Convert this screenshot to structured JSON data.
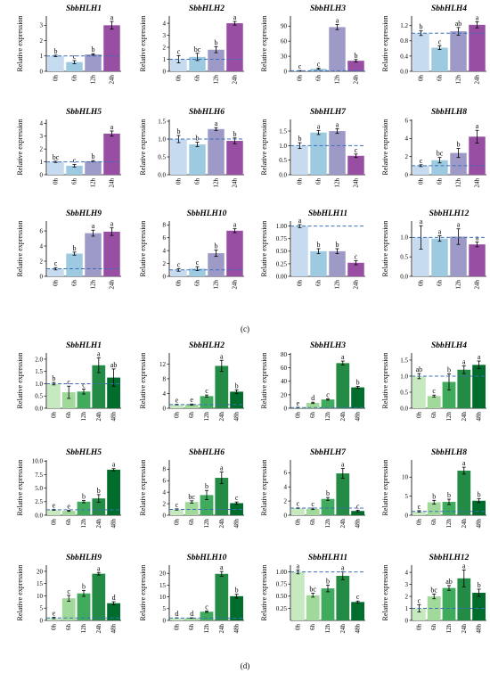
{
  "chart_data": [
    {
      "type": "bar",
      "panel": "c",
      "title": "SbbHLH1",
      "ylabel": "Relative expression",
      "categories": [
        "0h",
        "6h",
        "12h",
        "24h"
      ],
      "values": [
        1.0,
        0.6,
        1.1,
        3.0
      ],
      "errors": [
        0.05,
        0.1,
        0.05,
        0.25
      ],
      "letters": [
        "b",
        "c",
        "b",
        "a"
      ],
      "ylim": [
        0,
        3.6
      ],
      "yticks": [
        "0",
        "1",
        "2",
        "3"
      ],
      "reference_line": 1,
      "colors": [
        "#c6dbef",
        "#9ecae1",
        "#9e9ac8",
        "#984ea3"
      ]
    },
    {
      "type": "bar",
      "panel": "c",
      "title": "SbbHLH2",
      "ylabel": "Relative expression",
      "categories": [
        "0h",
        "6h",
        "12h",
        "24h"
      ],
      "values": [
        1.0,
        1.2,
        1.8,
        4.0
      ],
      "errors": [
        0.3,
        0.3,
        0.25,
        0.15
      ],
      "letters": [
        "c",
        "bc",
        "b",
        "a"
      ],
      "ylim": [
        0,
        4.6
      ],
      "yticks": [
        "0",
        "1",
        "2",
        "3",
        "4"
      ],
      "reference_line": 1,
      "colors": [
        "#c6dbef",
        "#9ecae1",
        "#9e9ac8",
        "#984ea3"
      ]
    },
    {
      "type": "bar",
      "panel": "c",
      "title": "SbbHLH3",
      "ylabel": "Relative expression",
      "categories": [
        "0h",
        "6h",
        "12h",
        "24h"
      ],
      "values": [
        1.0,
        5.0,
        88.0,
        21.0
      ],
      "errors": [
        0.5,
        1.5,
        5.0,
        2.5
      ],
      "letters": [
        "c",
        "c",
        "a",
        "b"
      ],
      "ylim": [
        0,
        110
      ],
      "yticks": [
        "0",
        "30",
        "60",
        "90"
      ],
      "reference_line": 1,
      "colors": [
        "#c6dbef",
        "#9ecae1",
        "#9e9ac8",
        "#984ea3"
      ]
    },
    {
      "type": "bar",
      "panel": "c",
      "title": "SbbHLH4",
      "ylabel": "Relative expression",
      "categories": [
        "0h",
        "6h",
        "12h",
        "24h"
      ],
      "values": [
        1.0,
        0.62,
        1.05,
        1.22
      ],
      "errors": [
        0.06,
        0.05,
        0.1,
        0.08
      ],
      "letters": [
        "b",
        "c",
        "ab",
        "a"
      ],
      "ylim": [
        0,
        1.45
      ],
      "yticks": [
        "0.0",
        "0.4",
        "0.8",
        "1.2"
      ],
      "reference_line": 1,
      "colors": [
        "#c6dbef",
        "#9ecae1",
        "#9e9ac8",
        "#984ea3"
      ]
    },
    {
      "type": "bar",
      "panel": "c",
      "title": "SbbHLH5",
      "ylabel": "Relative expression",
      "categories": [
        "0h",
        "6h",
        "12h",
        "24h"
      ],
      "values": [
        1.0,
        0.7,
        1.05,
        3.2
      ],
      "errors": [
        0.05,
        0.1,
        0.05,
        0.2
      ],
      "letters": [
        "bc",
        "c",
        "b",
        "a"
      ],
      "ylim": [
        0,
        4.3
      ],
      "yticks": [
        "0",
        "1",
        "2",
        "3",
        "4"
      ],
      "reference_line": 1,
      "colors": [
        "#c6dbef",
        "#9ecae1",
        "#9e9ac8",
        "#984ea3"
      ]
    },
    {
      "type": "bar",
      "panel": "c",
      "title": "SbbHLH6",
      "ylabel": "Relative expression",
      "categories": [
        "0h",
        "6h",
        "12h",
        "24h"
      ],
      "values": [
        1.0,
        0.85,
        1.28,
        0.95
      ],
      "errors": [
        0.1,
        0.06,
        0.04,
        0.08
      ],
      "letters": [
        "b",
        "b",
        "a",
        "b"
      ],
      "ylim": [
        0,
        1.55
      ],
      "yticks": [
        "0.0",
        "0.5",
        "1.0",
        "1.5"
      ],
      "reference_line": 1,
      "colors": [
        "#c6dbef",
        "#9ecae1",
        "#9e9ac8",
        "#984ea3"
      ]
    },
    {
      "type": "bar",
      "panel": "c",
      "title": "SbbHLH7",
      "ylabel": "Relative expression",
      "categories": [
        "0h",
        "6h",
        "12h",
        "24h"
      ],
      "values": [
        1.0,
        1.45,
        1.5,
        0.65
      ],
      "errors": [
        0.1,
        0.07,
        0.08,
        0.06
      ],
      "letters": [
        "b",
        "a",
        "a",
        "c"
      ],
      "ylim": [
        0,
        1.9
      ],
      "yticks": [
        "0.0",
        "0.5",
        "1.0",
        "1.5"
      ],
      "reference_line": 1,
      "colors": [
        "#c6dbef",
        "#9ecae1",
        "#9e9ac8",
        "#984ea3"
      ]
    },
    {
      "type": "bar",
      "panel": "c",
      "title": "SbbHLH8",
      "ylabel": "Relative expression",
      "categories": [
        "0h",
        "6h",
        "12h",
        "24h"
      ],
      "values": [
        1.0,
        1.6,
        2.4,
        4.2
      ],
      "errors": [
        0.1,
        0.3,
        0.5,
        0.7
      ],
      "letters": [
        "c",
        "bc",
        "b",
        "a"
      ],
      "ylim": [
        0,
        6.1
      ],
      "yticks": [
        "0",
        "2",
        "4",
        "6"
      ],
      "reference_line": 1,
      "colors": [
        "#c6dbef",
        "#9ecae1",
        "#9e9ac8",
        "#984ea3"
      ]
    },
    {
      "type": "bar",
      "panel": "c",
      "title": "SbbHLH9",
      "ylabel": "Relative expression",
      "categories": [
        "0h",
        "6h",
        "12h",
        "24h"
      ],
      "values": [
        1.0,
        3.0,
        5.7,
        5.9
      ],
      "errors": [
        0.15,
        0.2,
        0.4,
        0.5
      ],
      "letters": [
        "c",
        "b",
        "a",
        "a"
      ],
      "ylim": [
        0,
        7.3
      ],
      "yticks": [
        "0",
        "2",
        "4",
        "6"
      ],
      "reference_line": 1,
      "colors": [
        "#c6dbef",
        "#9ecae1",
        "#9e9ac8",
        "#984ea3"
      ]
    },
    {
      "type": "bar",
      "panel": "c",
      "title": "SbbHLH10",
      "ylabel": "Relative expression",
      "categories": [
        "0h",
        "6h",
        "12h",
        "24h"
      ],
      "values": [
        1.0,
        1.2,
        3.6,
        7.1
      ],
      "errors": [
        0.2,
        0.3,
        0.5,
        0.3
      ],
      "letters": [
        "c",
        "c",
        "b",
        "a"
      ],
      "ylim": [
        0,
        8.6
      ],
      "yticks": [
        "0",
        "2",
        "4",
        "6",
        "8"
      ],
      "reference_line": 1,
      "colors": [
        "#c6dbef",
        "#9ecae1",
        "#9e9ac8",
        "#984ea3"
      ]
    },
    {
      "type": "bar",
      "panel": "c",
      "title": "SbbHLH11",
      "ylabel": "Relative expression",
      "categories": [
        "0h",
        "6h",
        "12h",
        "24h"
      ],
      "values": [
        1.0,
        0.5,
        0.5,
        0.27
      ],
      "errors": [
        0.03,
        0.05,
        0.05,
        0.04
      ],
      "letters": [
        "a",
        "b",
        "b",
        "c"
      ],
      "ylim": [
        0,
        1.1
      ],
      "yticks": [
        "0.00",
        "0.25",
        "0.50",
        "0.75",
        "1.00"
      ],
      "reference_line": 1,
      "colors": [
        "#c6dbef",
        "#9ecae1",
        "#9e9ac8",
        "#984ea3"
      ]
    },
    {
      "type": "bar",
      "panel": "c",
      "title": "SbbHLH12",
      "ylabel": "Relative expression",
      "categories": [
        "0h",
        "6h",
        "12h",
        "24h"
      ],
      "values": [
        1.0,
        0.97,
        1.02,
        0.82
      ],
      "errors": [
        0.3,
        0.07,
        0.2,
        0.06
      ],
      "letters": [
        "a",
        "a",
        "a",
        "a"
      ],
      "ylim": [
        0,
        1.42
      ],
      "yticks": [
        "0.0",
        "0.5",
        "1.0"
      ],
      "reference_line": 1,
      "colors": [
        "#c6dbef",
        "#9ecae1",
        "#9e9ac8",
        "#984ea3"
      ]
    },
    {
      "type": "bar",
      "panel": "d",
      "title": "SbbHLH1",
      "ylabel": "Relative expression",
      "categories": [
        "0h",
        "6h",
        "12h",
        "24h",
        "48h"
      ],
      "values": [
        1.0,
        0.65,
        0.68,
        1.75,
        1.25
      ],
      "errors": [
        0.05,
        0.25,
        0.1,
        0.3,
        0.35
      ],
      "letters": [
        "b",
        "c",
        "c",
        "a",
        "ab"
      ],
      "ylim": [
        0,
        2.25
      ],
      "yticks": [
        "0.0",
        "0.5",
        "1.0",
        "1.5",
        "2.0"
      ],
      "reference_line": 1,
      "colors": [
        "#c7e9c0",
        "#a1d99b",
        "#41ab5d",
        "#238b45",
        "#006d2c"
      ]
    },
    {
      "type": "bar",
      "panel": "d",
      "title": "SbbHLH2",
      "ylabel": "Relative expression",
      "categories": [
        "0h",
        "6h",
        "12h",
        "24h",
        "48h"
      ],
      "values": [
        1.0,
        1.0,
        3.3,
        11.5,
        4.5
      ],
      "errors": [
        0.1,
        0.15,
        0.3,
        1.5,
        0.5
      ],
      "letters": [
        "e",
        "e",
        "c",
        "a",
        "b"
      ],
      "ylim": [
        0,
        15
      ],
      "yticks": [
        "0",
        "4",
        "8",
        "12"
      ],
      "reference_line": 1,
      "colors": [
        "#c7e9c0",
        "#a1d99b",
        "#41ab5d",
        "#238b45",
        "#006d2c"
      ]
    },
    {
      "type": "bar",
      "panel": "d",
      "title": "SbbHLH3",
      "ylabel": "Relative expression",
      "categories": [
        "0h",
        "6h",
        "12h",
        "24h",
        "48h"
      ],
      "values": [
        1.0,
        8.0,
        13.0,
        67.0,
        31.0
      ],
      "errors": [
        0.5,
        1.0,
        1.0,
        3.0,
        1.5
      ],
      "letters": [
        "e",
        "d",
        "c",
        "a",
        "b"
      ],
      "ylim": [
        0,
        82
      ],
      "yticks": [
        "0",
        "20",
        "40",
        "60",
        "80"
      ],
      "reference_line": 1,
      "colors": [
        "#c7e9c0",
        "#a1d99b",
        "#41ab5d",
        "#238b45",
        "#006d2c"
      ]
    },
    {
      "type": "bar",
      "panel": "d",
      "title": "SbbHLH4",
      "ylabel": "Relative expression",
      "categories": [
        "0h",
        "6h",
        "12h",
        "24h",
        "48h"
      ],
      "values": [
        1.0,
        0.38,
        0.82,
        1.2,
        1.35
      ],
      "errors": [
        0.08,
        0.03,
        0.25,
        0.12,
        0.12
      ],
      "letters": [
        "ab",
        "c",
        "b",
        "a",
        "a"
      ],
      "ylim": [
        0,
        1.72
      ],
      "yticks": [
        "0.0",
        "0.5",
        "1.0",
        "1.5"
      ],
      "reference_line": 1,
      "colors": [
        "#c7e9c0",
        "#a1d99b",
        "#41ab5d",
        "#238b45",
        "#006d2c"
      ]
    },
    {
      "type": "bar",
      "panel": "d",
      "title": "SbbHLH5",
      "ylabel": "Relative expression",
      "categories": [
        "0h",
        "6h",
        "12h",
        "24h",
        "48h"
      ],
      "values": [
        1.0,
        0.8,
        2.5,
        3.1,
        8.4
      ],
      "errors": [
        0.1,
        0.1,
        0.2,
        0.7,
        0.2
      ],
      "letters": [
        "e",
        "e",
        "b",
        "b",
        "a"
      ],
      "ylim": [
        0,
        10.2
      ],
      "yticks": [
        "0.0",
        "2.5",
        "5.0",
        "7.5",
        "10.0"
      ],
      "reference_line": 1,
      "colors": [
        "#c7e9c0",
        "#a1d99b",
        "#41ab5d",
        "#238b45",
        "#006d2c"
      ]
    },
    {
      "type": "bar",
      "panel": "d",
      "title": "SbbHLH6",
      "ylabel": "Relative expression",
      "categories": [
        "0h",
        "6h",
        "12h",
        "24h",
        "48h"
      ],
      "values": [
        1.0,
        2.3,
        3.5,
        6.5,
        2.1
      ],
      "errors": [
        0.1,
        0.2,
        0.8,
        1.0,
        0.2
      ],
      "letters": [
        "c",
        "bc",
        "b",
        "a",
        "c"
      ],
      "ylim": [
        0,
        9.6
      ],
      "yticks": [
        "0",
        "2",
        "4",
        "6",
        "8"
      ],
      "reference_line": 1,
      "colors": [
        "#c7e9c0",
        "#a1d99b",
        "#41ab5d",
        "#238b45",
        "#006d2c"
      ]
    },
    {
      "type": "bar",
      "panel": "d",
      "title": "SbbHLH7",
      "ylabel": "Relative expression",
      "categories": [
        "0h",
        "6h",
        "12h",
        "24h",
        "48h"
      ],
      "values": [
        1.0,
        0.9,
        2.3,
        5.9,
        0.6
      ],
      "errors": [
        0.05,
        0.1,
        0.2,
        0.7,
        0.1
      ],
      "letters": [
        "c",
        "c",
        "b",
        "a",
        "c"
      ],
      "ylim": [
        0,
        7.8
      ],
      "yticks": [
        "0",
        "2",
        "4",
        "6"
      ],
      "reference_line": 1,
      "colors": [
        "#c7e9c0",
        "#a1d99b",
        "#41ab5d",
        "#238b45",
        "#006d2c"
      ]
    },
    {
      "type": "bar",
      "panel": "d",
      "title": "SbbHLH8",
      "ylabel": "Relative expression",
      "categories": [
        "0h",
        "6h",
        "12h",
        "24h",
        "48h"
      ],
      "values": [
        1.0,
        3.4,
        3.5,
        11.7,
        3.8
      ],
      "errors": [
        0.2,
        0.5,
        0.7,
        0.9,
        0.5
      ],
      "letters": [
        "c",
        "b",
        "b",
        "a",
        "b"
      ],
      "ylim": [
        0,
        14.5
      ],
      "yticks": [
        "0",
        "5",
        "10"
      ],
      "reference_line": 1,
      "colors": [
        "#c7e9c0",
        "#a1d99b",
        "#41ab5d",
        "#238b45",
        "#006d2c"
      ]
    },
    {
      "type": "bar",
      "panel": "d",
      "title": "SbbHLH9",
      "ylabel": "Relative expression",
      "categories": [
        "0h",
        "6h",
        "12h",
        "24h",
        "48h"
      ],
      "values": [
        1.0,
        9.0,
        11.0,
        19.0,
        7.0
      ],
      "errors": [
        0.3,
        1.2,
        1.2,
        0.5,
        0.6
      ],
      "letters": [
        "e",
        "c",
        "b",
        "a",
        "d"
      ],
      "ylim": [
        0,
        22.5
      ],
      "yticks": [
        "0",
        "5",
        "10",
        "15",
        "20"
      ],
      "reference_line": 1,
      "colors": [
        "#c7e9c0",
        "#a1d99b",
        "#41ab5d",
        "#238b45",
        "#006d2c"
      ]
    },
    {
      "type": "bar",
      "panel": "d",
      "title": "SbbHLH10",
      "ylabel": "Relative expression",
      "categories": [
        "0h",
        "6h",
        "12h",
        "24h",
        "48h"
      ],
      "values": [
        1.0,
        1.0,
        3.7,
        19.8,
        10.3
      ],
      "errors": [
        0.1,
        0.1,
        0.3,
        1.0,
        0.8
      ],
      "letters": [
        "d",
        "d",
        "c",
        "a",
        "b"
      ],
      "ylim": [
        0,
        23.5
      ],
      "yticks": [
        "0",
        "5",
        "10",
        "15",
        "20"
      ],
      "reference_line": 1,
      "colors": [
        "#c7e9c0",
        "#a1d99b",
        "#41ab5d",
        "#238b45",
        "#006d2c"
      ]
    },
    {
      "type": "bar",
      "panel": "d",
      "title": "SbbHLH11",
      "ylabel": "Relative expression",
      "categories": [
        "0h",
        "6h",
        "12h",
        "24h",
        "48h"
      ],
      "values": [
        1.0,
        0.52,
        0.66,
        0.92,
        0.38
      ],
      "errors": [
        0.04,
        0.04,
        0.07,
        0.08,
        0.02
      ],
      "letters": [
        "a",
        "bc",
        "b",
        "a",
        "c"
      ],
      "ylim": [
        0,
        1.14
      ],
      "yticks": [
        "0.25",
        "0.50",
        "0.75",
        "1.00"
      ],
      "reference_line": 1,
      "colors": [
        "#c7e9c0",
        "#a1d99b",
        "#41ab5d",
        "#238b45",
        "#006d2c"
      ]
    },
    {
      "type": "bar",
      "panel": "d",
      "title": "SbbHLH12",
      "ylabel": "Relative expression",
      "categories": [
        "0h",
        "6h",
        "12h",
        "24h",
        "48h"
      ],
      "values": [
        1.0,
        2.0,
        2.7,
        3.5,
        2.3
      ],
      "errors": [
        0.3,
        0.2,
        0.2,
        0.7,
        0.3
      ],
      "letters": [
        "c",
        "bc",
        "ab",
        "a",
        "b"
      ],
      "ylim": [
        0,
        4.6
      ],
      "yticks": [
        "0",
        "1",
        "2",
        "3",
        "4"
      ],
      "reference_line": 1,
      "colors": [
        "#c7e9c0",
        "#a1d99b",
        "#41ab5d",
        "#238b45",
        "#006d2c"
      ]
    }
  ],
  "panel_labels": {
    "c": "(c)",
    "d": "(d)"
  }
}
